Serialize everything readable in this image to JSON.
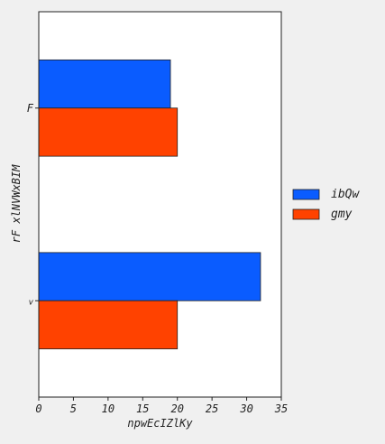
{
  "chart_data": {
    "type": "bar",
    "orientation": "horizontal",
    "categories": [
      "v",
      "F"
    ],
    "series": [
      {
        "name": "ibQw",
        "color": "#0a5cff",
        "values": [
          32,
          19
        ]
      },
      {
        "name": "gmy",
        "color": "#ff4200",
        "values": [
          20,
          20
        ]
      }
    ],
    "xlabel": "npwEcIZlKy",
    "ylabel": "rF xlNVWxBIM",
    "xlim": [
      0,
      35
    ],
    "xticks": [
      0,
      5,
      10,
      15,
      20,
      25,
      30,
      35
    ],
    "grid": false,
    "legend_position": "right"
  }
}
